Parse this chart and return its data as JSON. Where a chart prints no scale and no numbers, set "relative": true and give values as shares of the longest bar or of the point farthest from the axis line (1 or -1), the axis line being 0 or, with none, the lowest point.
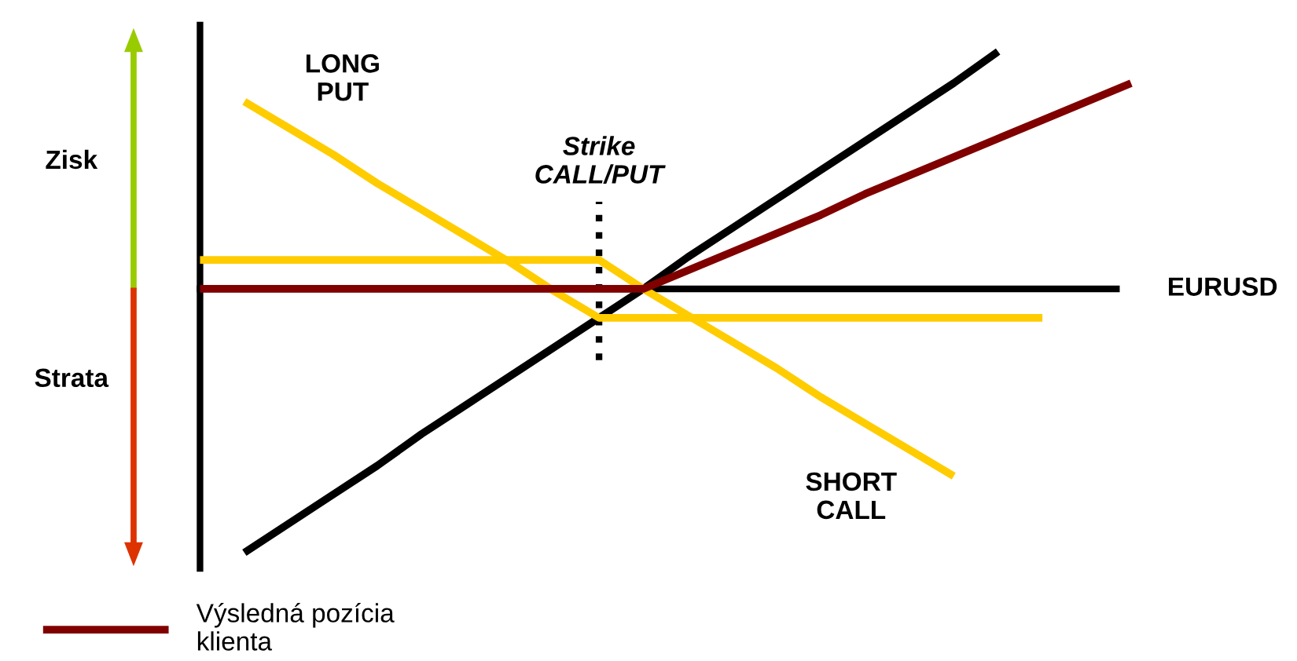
{
  "chart_data": {
    "type": "line",
    "relative": true,
    "xlabel": "EURUSD",
    "categories": [
      null,
      null,
      null,
      null,
      null,
      null,
      null,
      null,
      null,
      null,
      null,
      null,
      null,
      null,
      null,
      null,
      null,
      null,
      null,
      null,
      null,
      null
    ],
    "series": [
      {
        "color": "#000000",
        "values": [
          null,
          -1,
          -0.89,
          -0.78,
          -0.67,
          -0.55,
          -0.44,
          -0.33,
          -0.22,
          -0.11,
          0,
          0.12,
          0.23,
          0.34,
          0.45,
          0.56,
          0.67,
          0.78,
          0.9,
          null,
          null,
          null
        ]
      },
      {
        "name": "LONG\nPUT",
        "color": "#ffcc00",
        "values": [
          null,
          0.71,
          0.61,
          0.51,
          0.4,
          0.3,
          0.2,
          0.1,
          -0.01,
          -0.11,
          -0.11,
          -0.11,
          -0.11,
          -0.11,
          -0.11,
          -0.11,
          -0.11,
          -0.11,
          -0.11,
          -0.11,
          null,
          null
        ]
      },
      {
        "name": "SHORT\nCALL",
        "color": "#ffcc00",
        "values": [
          0.11,
          0.11,
          0.11,
          0.11,
          0.11,
          0.11,
          0.11,
          0.11,
          0.11,
          0.11,
          0,
          -0.1,
          -0.2,
          -0.3,
          -0.41,
          -0.51,
          -0.61,
          -0.71,
          null,
          null,
          null,
          null
        ]
      },
      {
        "name": "Výsledná pozícia\nklienta",
        "color": "#800000",
        "values": [
          0,
          0,
          0,
          0,
          0,
          0,
          0,
          0,
          0,
          0,
          0,
          0.07,
          0.14,
          0.21,
          0.28,
          0.36,
          0.43,
          0.5,
          0.57,
          0.64,
          0.71,
          0.78
        ]
      }
    ],
    "annotations": [
      "Zisk",
      "Strata",
      "Strike\nCALL/PUT"
    ],
    "legend": "bottom left",
    "marker": "none",
    "line_style": "solid"
  }
}
